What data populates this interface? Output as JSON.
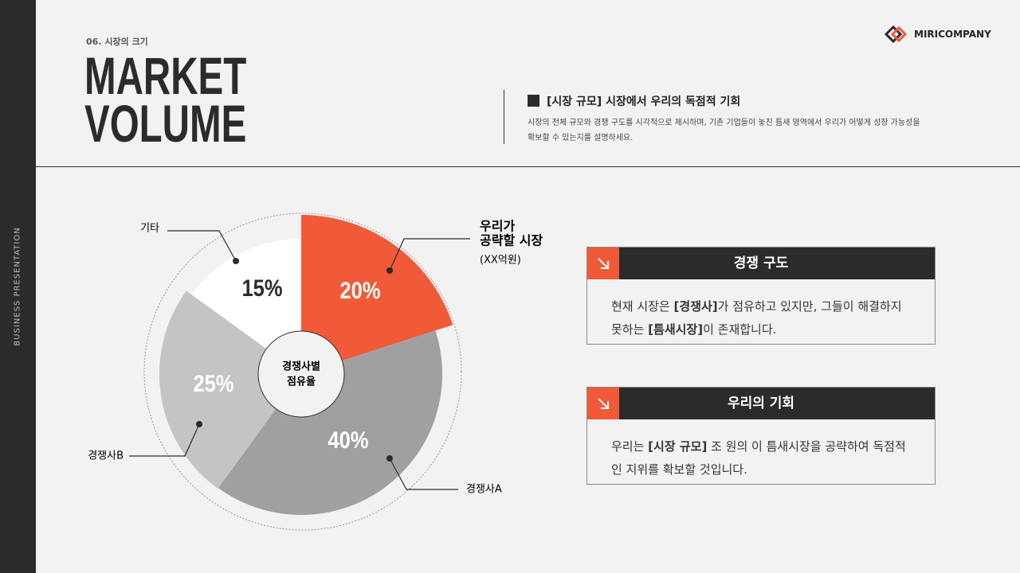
{
  "sidebar": "BUSINESS PRESENTATION",
  "header": {
    "section": "06. 시장의 크기",
    "title": [
      "MARKET",
      "VOLUME"
    ],
    "logo": "MIRICOMPANY",
    "intro_title": "[시장 규모] 시장에서 우리의 독점적 기회",
    "intro_body": "시장의 전체 규모와 경쟁 구도를 시각적으로 제시하며, 기존 기업들이 놓친 틈새 영역에서 우리가 어떻게 성장 가능성을 확보할 수 있는지를 설명하세요."
  },
  "chart_data": {
    "type": "pie",
    "center_label": [
      "경쟁사별",
      "점유율"
    ],
    "categories": [
      [
        "우리가",
        "공략할 시장"
      ],
      [
        "경쟁사A"
      ],
      [
        "경쟁사B"
      ],
      [
        "기타"
      ]
    ],
    "category_note": "(XX억원)",
    "values": [
      20,
      40,
      25,
      15
    ],
    "value_labels": [
      "20%",
      "40%",
      "25%",
      "15%"
    ],
    "colors": [
      "#f15a38",
      "#a0a0a0",
      "#c4c4c4",
      "#ffffff"
    ]
  },
  "cards": [
    {
      "title": "경쟁 구도",
      "body": [
        {
          "text": "현재 시장은 "
        },
        {
          "text": "[경쟁사]",
          "bold": true
        },
        {
          "text": "가 점유하고 있지만, 그들이 해결하지 못하는 "
        },
        {
          "text": "[틈새시장]",
          "bold": true
        },
        {
          "text": "이 존재합니다."
        }
      ]
    },
    {
      "title": "우리의 기회",
      "body": [
        {
          "text": "우리는 "
        },
        {
          "text": "[시장 규모]",
          "bold": true
        },
        {
          "text": " 조 원의 이 틈새시장을 공략하여 독점적인 지위를 확보할 것입니다."
        }
      ]
    }
  ]
}
